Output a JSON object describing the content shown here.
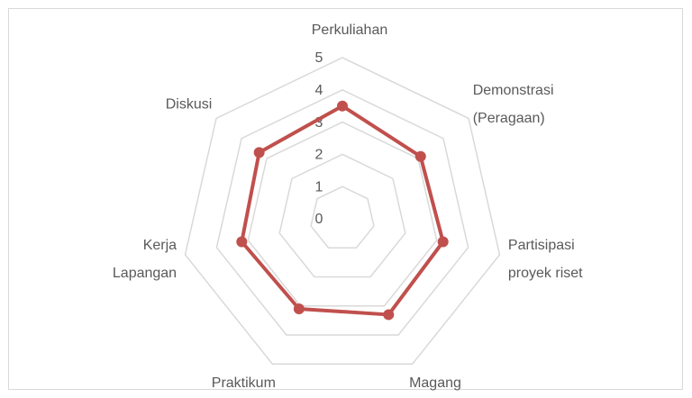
{
  "chart_data": {
    "type": "radar",
    "categories": [
      [
        "Perkuliahan"
      ],
      [
        "Demonstrasi",
        "(Peragaan)"
      ],
      [
        "Partisipasi",
        "proyek riset"
      ],
      [
        "Magang"
      ],
      [
        "Praktikum"
      ],
      [
        "Kerja",
        "Lapangan"
      ],
      [
        "Diskusi"
      ]
    ],
    "series": [
      {
        "color": "#c0504d",
        "values": [
          3.5,
          3.1,
          3.2,
          3.3,
          3.1,
          3.2,
          3.3
        ]
      }
    ],
    "ylim": [
      0,
      5
    ],
    "yticks": [
      0,
      1,
      2,
      3,
      4,
      5
    ],
    "grid": true
  }
}
